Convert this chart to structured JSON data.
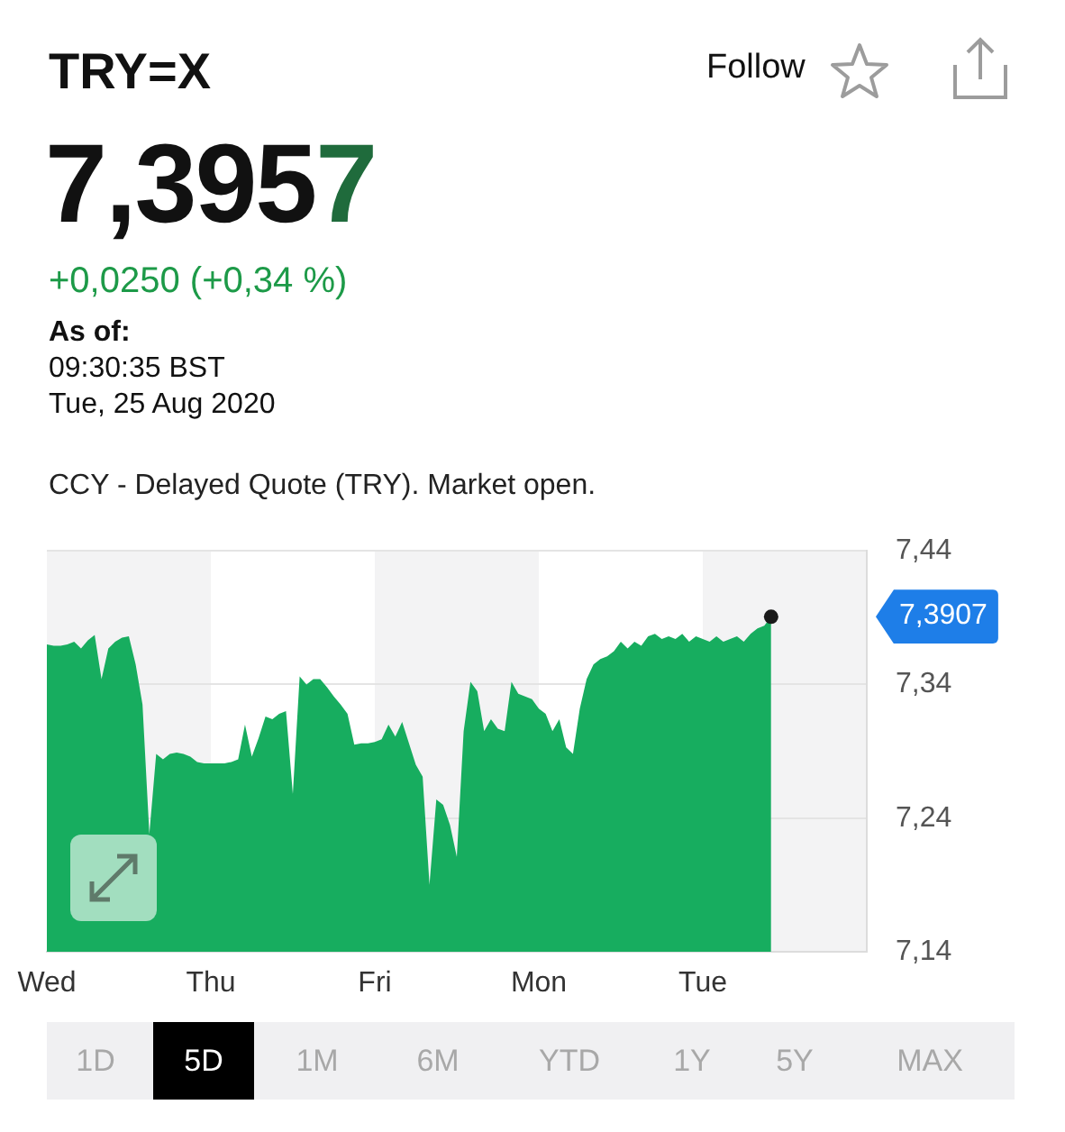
{
  "chart_data": {
    "type": "area",
    "title": "TRY=X",
    "subtitle": "CCY - Delayed Quote (TRY). Market open.",
    "annotations": [
      "7,3957",
      "+0,0250 (+0,34 %)",
      "As of:",
      "09:30:35 BST",
      "Tue, 25 Aug 2020",
      "Follow",
      "7,3907",
      "1D",
      "5D",
      "1M",
      "6M",
      "YTD",
      "1Y",
      "5Y",
      "MAX"
    ],
    "color": "#17ad5f",
    "categories": [
      "Wed",
      null,
      null,
      null,
      null,
      null,
      null,
      null,
      null,
      null,
      null,
      null,
      null,
      null,
      null,
      null,
      null,
      null,
      null,
      null,
      null,
      null,
      null,
      null,
      "Thu",
      null,
      null,
      null,
      null,
      null,
      null,
      null,
      null,
      null,
      null,
      null,
      null,
      null,
      null,
      null,
      null,
      null,
      null,
      null,
      null,
      null,
      null,
      null,
      "Fri",
      null,
      null,
      null,
      null,
      null,
      null,
      null,
      null,
      null,
      null,
      null,
      null,
      null,
      null,
      null,
      null,
      null,
      null,
      null,
      null,
      null,
      null,
      null,
      "Mon",
      null,
      null,
      null,
      null,
      null,
      null,
      null,
      null,
      null,
      null,
      null,
      null,
      null,
      null,
      null,
      null,
      null,
      null,
      null,
      null,
      null,
      null,
      null,
      "Tue",
      null,
      null,
      null,
      null,
      null,
      null,
      null,
      null,
      null,
      null,
      null,
      null,
      null,
      null,
      null,
      null,
      null,
      null,
      null,
      null,
      null,
      null,
      null,
      null
    ],
    "values": [
      7.37,
      7.369,
      7.369,
      7.37,
      7.372,
      7.367,
      7.373,
      7.377,
      7.344,
      7.367,
      7.372,
      7.375,
      7.376,
      7.355,
      7.325,
      7.228,
      7.288,
      7.284,
      7.288,
      7.289,
      7.288,
      7.286,
      7.282,
      7.281,
      7.281,
      7.281,
      7.281,
      7.282,
      7.284,
      7.31,
      7.286,
      7.3,
      7.316,
      7.314,
      7.318,
      7.32,
      7.258,
      7.346,
      7.34,
      7.344,
      7.344,
      7.338,
      7.331,
      7.325,
      7.318,
      7.295,
      7.296,
      7.296,
      7.297,
      7.299,
      7.31,
      7.301,
      7.312,
      7.296,
      7.28,
      7.271,
      7.19,
      7.254,
      7.25,
      7.235,
      7.211,
      7.305,
      7.342,
      7.335,
      7.305,
      7.314,
      7.307,
      7.305,
      7.342,
      7.333,
      7.331,
      7.329,
      7.322,
      7.318,
      7.305,
      7.314,
      7.293,
      7.288,
      7.322,
      7.344,
      7.355,
      7.359,
      7.361,
      7.365,
      7.372,
      7.367,
      7.372,
      7.369,
      7.376,
      7.378,
      7.374,
      7.376,
      7.374,
      7.378,
      7.372,
      7.376,
      7.374,
      7.372,
      7.376,
      7.372,
      7.374,
      7.376,
      7.372,
      7.378,
      7.382,
      7.384,
      7.3907,
      null,
      null,
      null,
      null,
      null,
      null,
      null,
      null,
      null,
      null,
      null,
      null,
      null,
      null
    ],
    "ylim": [
      7.14,
      7.44
    ],
    "yticks": [
      {
        "value": 7.14,
        "label": "7,14"
      },
      {
        "value": 7.24,
        "label": "7,24"
      },
      {
        "value": 7.34,
        "label": "7,34"
      },
      {
        "value": 7.44,
        "label": "7,44"
      }
    ],
    "bands": [
      {
        "axis": "x",
        "from": "Thu",
        "to": "Fri",
        "color": "#ffffff"
      },
      {
        "axis": "x",
        "from": "Mon",
        "to": "Tue",
        "color": "#ffffff"
      }
    ],
    "grid": "y",
    "legend": false
  }
}
